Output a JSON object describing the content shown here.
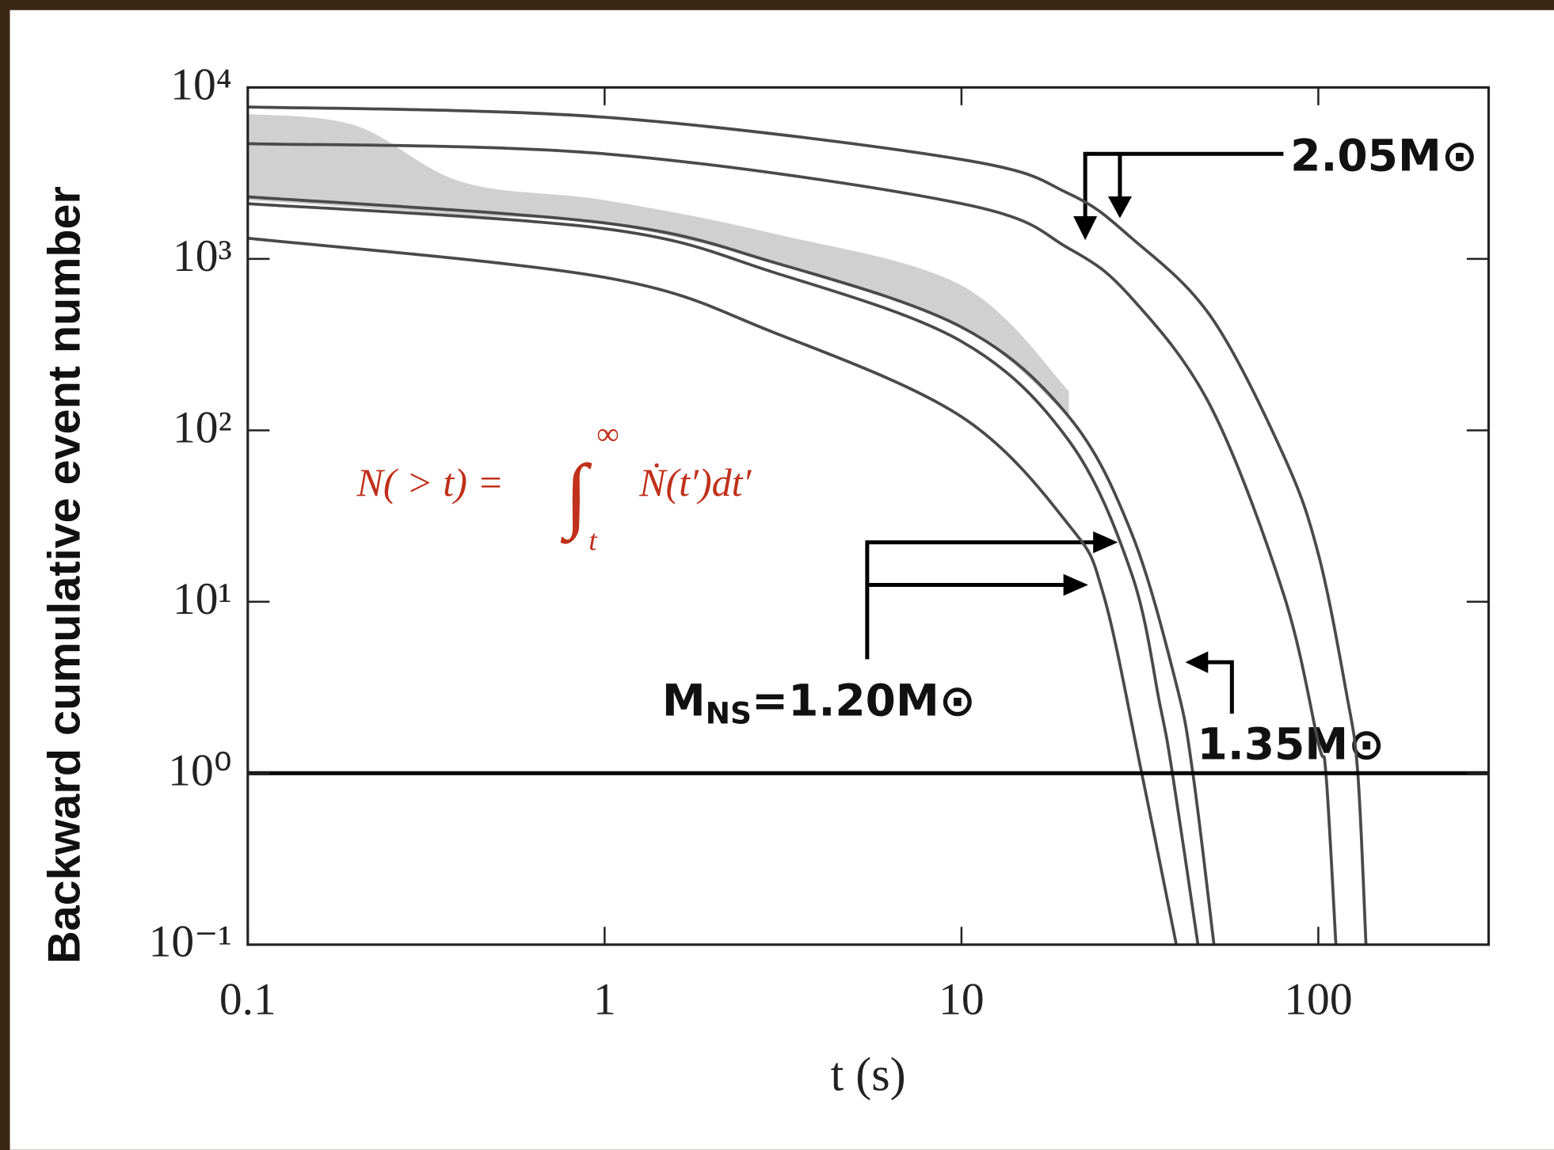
{
  "chart_data": {
    "type": "line",
    "y_label": "Backward cumulative event number",
    "x_label": "t (s)",
    "log_x": true,
    "log_y": true,
    "xlim": [
      0.1,
      300
    ],
    "ylim": [
      0.1,
      10000
    ],
    "xticks": [
      0.1,
      1,
      10,
      100
    ],
    "yticks": [
      {
        "value": 0.1,
        "label": "10⁻¹"
      },
      {
        "value": 1,
        "label": "10⁰"
      },
      {
        "value": 10,
        "label": "10¹"
      },
      {
        "value": 100,
        "label": "10²"
      },
      {
        "value": 1000,
        "label": "10³"
      },
      {
        "value": 10000,
        "label": "10⁴"
      }
    ],
    "hline": {
      "value": 1,
      "color": "#000000"
    },
    "band": {
      "color": "#c8c8c8",
      "x": [
        0.1,
        0.2,
        0.4,
        1,
        3,
        10,
        20
      ],
      "lower": [
        2200,
        2000,
        1800,
        1600,
        950,
        400,
        120
      ],
      "upper": [
        7000,
        6000,
        2800,
        2200,
        1400,
        700,
        170
      ]
    },
    "series": [
      {
        "color": "#4a4a4a",
        "x": [
          0.1,
          1,
          10,
          20,
          30,
          50,
          80,
          100,
          120,
          129,
          136
        ],
        "values": [
          7700,
          6700,
          3800,
          2400,
          1320,
          460,
          71,
          19,
          2.9,
          1,
          0.1
        ]
      },
      {
        "color": "#4a4a4a",
        "x": [
          0.1,
          1,
          10,
          20,
          30,
          50,
          80,
          100,
          105,
          112
        ],
        "values": [
          4700,
          4100,
          2100,
          1150,
          590,
          137,
          11,
          1.5,
          1,
          0.1
        ]
      },
      {
        "color": "#4a4a4a",
        "x": [
          0.1,
          1,
          3,
          10,
          20,
          30,
          40,
          44.5,
          51
        ],
        "values": [
          2300,
          1620,
          950,
          400,
          120,
          25,
          3.3,
          1,
          0.1
        ]
      },
      {
        "color": "#4a4a4a",
        "x": [
          0.1,
          1,
          3,
          10,
          20,
          30,
          36,
          39,
          46
        ],
        "values": [
          2100,
          1500,
          830,
          330,
          87,
          14.5,
          2.5,
          1,
          0.1
        ]
      },
      {
        "color": "#4a4a4a",
        "x": [
          0.1,
          1,
          3,
          10,
          20,
          25,
          32,
          40
        ],
        "values": [
          1320,
          780,
          370,
          120,
          28,
          11,
          1,
          0.1
        ]
      }
    ],
    "annotations": [
      {
        "label": [
          "2.05M⊙"
        ]
      },
      {
        "label": [
          "M",
          "NS",
          "=1.20M⊙"
        ]
      },
      {
        "label": [
          "1.35M⊙"
        ]
      }
    ],
    "formula": {
      "color": "#c0301a",
      "parts": [
        "N( > t) = ",
        "∫",
        "∞",
        "t",
        "Ṅ(t′)dt′"
      ]
    }
  }
}
